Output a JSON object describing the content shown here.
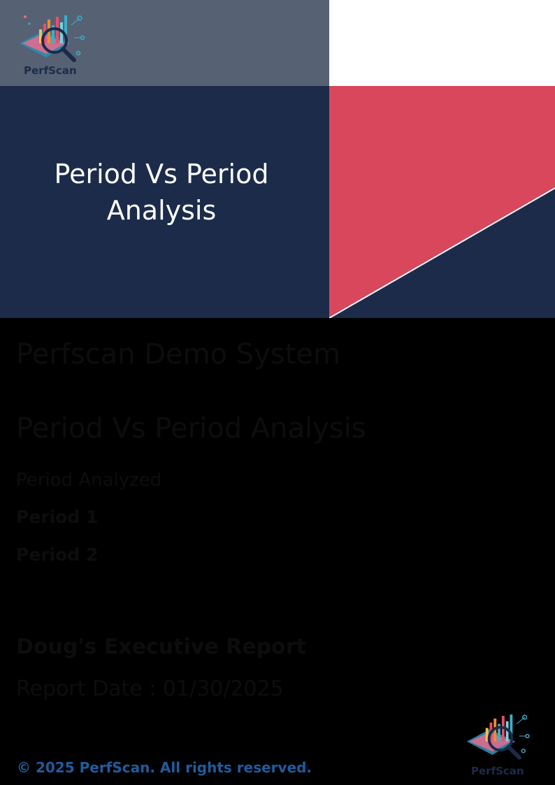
{
  "cover": {
    "title_line1": "Period Vs Period",
    "title_line2": "Analysis"
  },
  "brand": {
    "name": "PerfScan",
    "colors": {
      "logo_band": "#566274",
      "navy": "#1c2b49",
      "accent_red": "#d8475c",
      "white": "#ffffff",
      "page_background": "#000000",
      "copyright_blue": "#1f5c9e"
    },
    "logo_icon": "magnifier-chart-icon"
  },
  "content": {
    "system_name": "Perfscan Demo System",
    "report_title": "Period Vs Period Analysis",
    "period_heading": "Period Analyzed",
    "period_1": "Period 1",
    "period_2": "Period 2",
    "executive_report": "Doug's Executive Report",
    "report_date": "Report Date : 01/30/2025"
  },
  "footer": {
    "copyright": "© 2025 PerfScan. All rights reserved."
  }
}
